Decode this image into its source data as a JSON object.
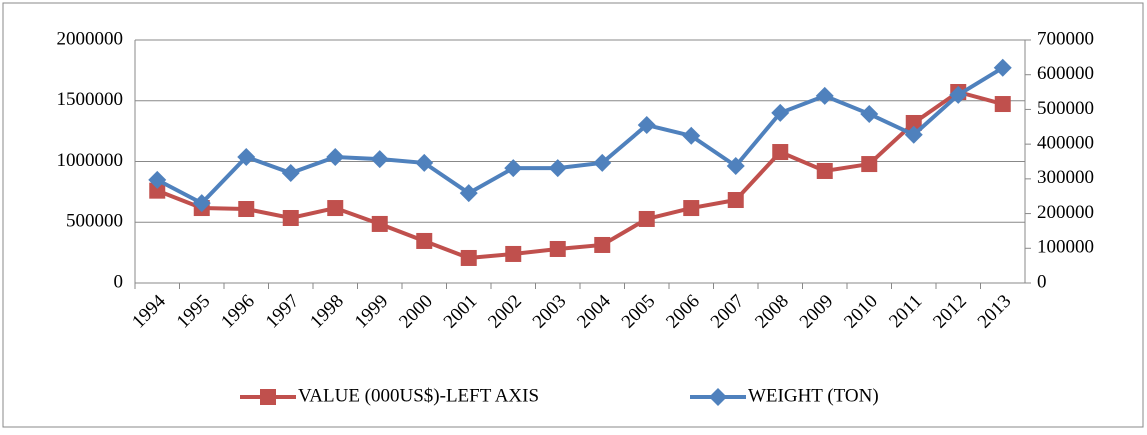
{
  "chart_data": {
    "type": "line",
    "categories": [
      "1994",
      "1995",
      "1996",
      "1997",
      "1998",
      "1999",
      "2000",
      "2001",
      "2002",
      "2003",
      "2004",
      "2005",
      "2006",
      "2007",
      "2008",
      "2009",
      "2010",
      "2011",
      "2012",
      "2013"
    ],
    "series": [
      {
        "name": "VALUE (000US$)-LEFT AXIS",
        "color": "#c0504d",
        "marker": "square",
        "values": [
          760000,
          617000,
          609000,
          535000,
          617000,
          486000,
          346000,
          206000,
          239000,
          280000,
          313000,
          527000,
          617000,
          683000,
          1078000,
          922000,
          979000,
          1317000,
          1572000,
          1473000
        ]
      },
      {
        "name": "WEIGHT (TON)",
        "color": "#4f81bd",
        "marker": "diamond",
        "axis": "y2",
        "values": [
          297000,
          230000,
          363000,
          317000,
          363000,
          357000,
          346000,
          259000,
          331000,
          331000,
          346000,
          455000,
          424000,
          337000,
          490000,
          539000,
          487000,
          427000,
          542000,
          620000
        ]
      }
    ],
    "ylim": [
      0,
      2000000
    ],
    "yticks": [
      0,
      500000,
      1000000,
      1500000,
      2000000
    ],
    "y2lim": [
      0,
      700000
    ],
    "y2ticks": [
      0,
      100000,
      200000,
      300000,
      400000,
      500000,
      600000,
      700000
    ],
    "grid": true,
    "legend": "bottom"
  }
}
